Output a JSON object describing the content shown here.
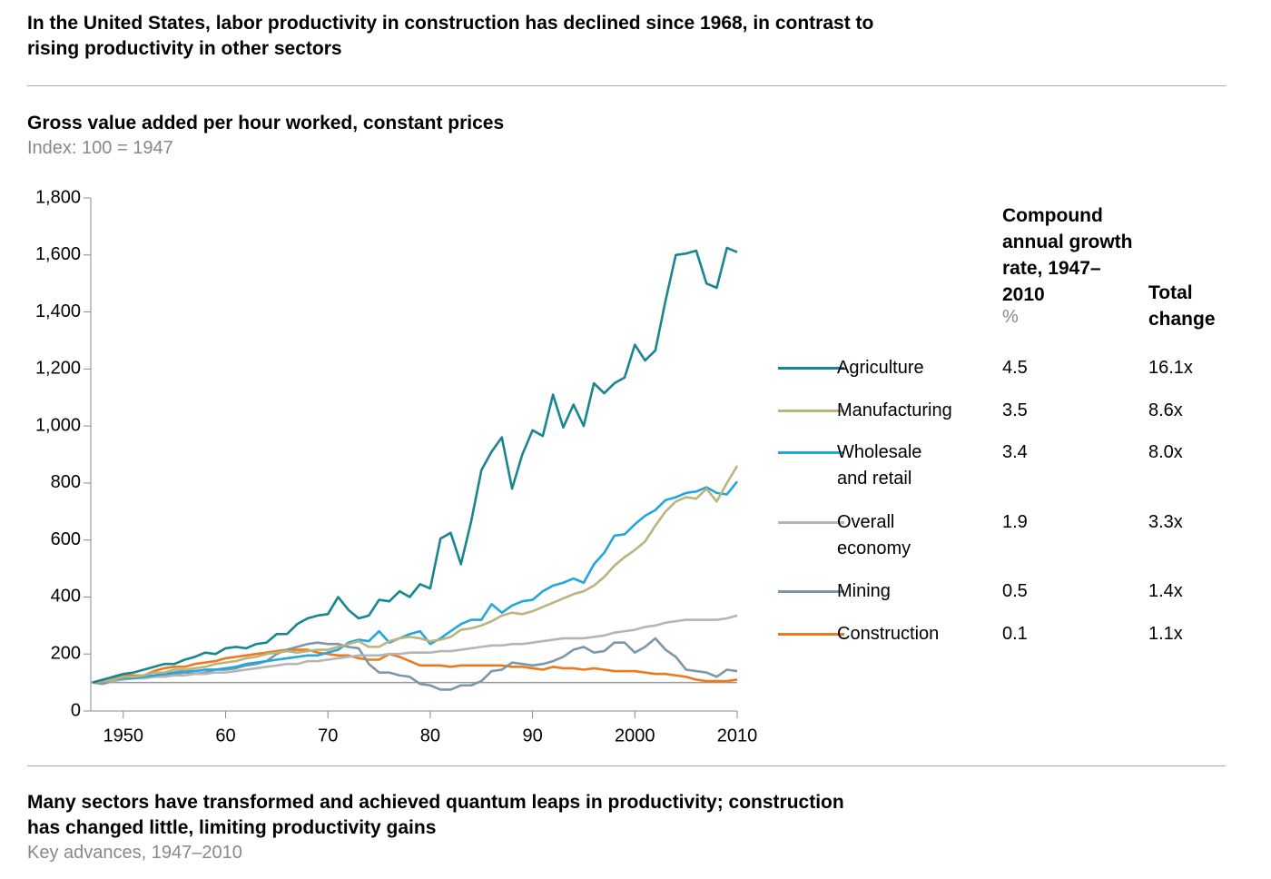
{
  "title": "In the United States, labor productivity in construction has declined since 1968, in contrast to rising productivity in other sectors",
  "chart_data": {
    "type": "line",
    "title": "Gross value added per hour worked, constant prices",
    "subtitle": "Index: 100 = 1947",
    "x": [
      1947,
      1948,
      1949,
      1950,
      1951,
      1952,
      1953,
      1954,
      1955,
      1956,
      1957,
      1958,
      1959,
      1960,
      1961,
      1962,
      1963,
      1964,
      1965,
      1966,
      1967,
      1968,
      1969,
      1970,
      1971,
      1972,
      1973,
      1974,
      1975,
      1976,
      1977,
      1978,
      1979,
      1980,
      1981,
      1982,
      1983,
      1984,
      1985,
      1986,
      1987,
      1988,
      1989,
      1990,
      1991,
      1992,
      1993,
      1994,
      1995,
      1996,
      1997,
      1998,
      1999,
      2000,
      2001,
      2002,
      2003,
      2004,
      2005,
      2006,
      2007,
      2008,
      2009,
      2010
    ],
    "xlim": [
      1947,
      2010
    ],
    "xticks": [
      1950,
      {
        "value": 1960,
        "label": "60"
      },
      {
        "value": 1970,
        "label": "70"
      },
      {
        "value": 1980,
        "label": "80"
      },
      {
        "value": 1990,
        "label": "90"
      },
      2000,
      2010
    ],
    "ylim": [
      0,
      1800
    ],
    "yticks": [
      0,
      200,
      400,
      600,
      800,
      {
        "value": 1000,
        "label": "1,000"
      },
      {
        "value": 1200,
        "label": "1,200"
      },
      {
        "value": 1400,
        "label": "1,400"
      },
      {
        "value": 1600,
        "label": "1,600"
      },
      {
        "value": 1800,
        "label": "1,800"
      }
    ],
    "baseline": 100,
    "series": [
      {
        "name": "Agriculture",
        "color": "#17868f",
        "values": [
          100,
          110,
          120,
          130,
          135,
          145,
          155,
          165,
          165,
          180,
          190,
          205,
          200,
          220,
          225,
          220,
          235,
          240,
          270,
          270,
          305,
          325,
          335,
          340,
          400,
          355,
          325,
          335,
          390,
          385,
          420,
          400,
          445,
          430,
          605,
          625,
          515,
          665,
          845,
          910,
          960,
          780,
          900,
          985,
          965,
          1110,
          995,
          1075,
          1000,
          1150,
          1115,
          1150,
          1170,
          1285,
          1230,
          1265,
          1440,
          1600,
          1605,
          1615,
          1500,
          1485,
          1625,
          1610
        ]
      },
      {
        "name": "Manufacturing",
        "color": "#bcb37e",
        "values": [
          100,
          105,
          110,
          120,
          120,
          125,
          135,
          135,
          145,
          145,
          150,
          155,
          165,
          170,
          175,
          185,
          190,
          200,
          205,
          210,
          205,
          210,
          215,
          215,
          225,
          235,
          245,
          225,
          225,
          245,
          255,
          260,
          255,
          245,
          250,
          260,
          285,
          290,
          300,
          315,
          335,
          345,
          340,
          350,
          365,
          380,
          395,
          410,
          420,
          440,
          470,
          510,
          540,
          565,
          595,
          650,
          700,
          735,
          750,
          745,
          780,
          735,
          800,
          860
        ]
      },
      {
        "name": "Wholesale and retail",
        "color": "#22a6dd",
        "values": [
          100,
          105,
          110,
          115,
          115,
          120,
          125,
          130,
          135,
          140,
          140,
          145,
          145,
          150,
          155,
          165,
          170,
          175,
          180,
          185,
          190,
          195,
          195,
          205,
          215,
          240,
          250,
          245,
          280,
          240,
          255,
          270,
          280,
          235,
          255,
          280,
          305,
          320,
          320,
          375,
          345,
          370,
          385,
          390,
          420,
          440,
          450,
          465,
          450,
          515,
          555,
          615,
          620,
          655,
          685,
          705,
          740,
          750,
          765,
          770,
          785,
          765,
          760,
          805
        ]
      },
      {
        "name": "Overall economy",
        "color": "#b5b5b5",
        "values": [
          100,
          105,
          105,
          110,
          115,
          115,
          120,
          120,
          125,
          125,
          130,
          130,
          135,
          135,
          140,
          145,
          150,
          155,
          160,
          165,
          165,
          175,
          175,
          180,
          185,
          190,
          195,
          195,
          195,
          200,
          200,
          205,
          205,
          205,
          210,
          210,
          215,
          220,
          225,
          230,
          230,
          235,
          235,
          240,
          245,
          250,
          255,
          255,
          255,
          260,
          265,
          275,
          280,
          285,
          295,
          300,
          310,
          315,
          320,
          320,
          320,
          320,
          325,
          335
        ]
      },
      {
        "name": "Mining",
        "color": "#7b97a8",
        "values": [
          100,
          95,
          105,
          115,
          120,
          115,
          120,
          125,
          130,
          135,
          130,
          135,
          145,
          145,
          150,
          160,
          165,
          175,
          200,
          215,
          225,
          235,
          240,
          235,
          235,
          225,
          220,
          165,
          135,
          135,
          125,
          120,
          95,
          90,
          75,
          75,
          90,
          90,
          105,
          140,
          145,
          170,
          165,
          160,
          165,
          175,
          190,
          215,
          225,
          205,
          210,
          240,
          240,
          205,
          225,
          255,
          215,
          190,
          145,
          140,
          135,
          120,
          145,
          140
        ]
      },
      {
        "name": "Construction",
        "color": "#ec7a1c",
        "values": [
          100,
          110,
          115,
          125,
          125,
          125,
          140,
          150,
          155,
          155,
          165,
          170,
          175,
          185,
          190,
          195,
          200,
          205,
          210,
          215,
          215,
          215,
          205,
          200,
          195,
          195,
          185,
          180,
          180,
          200,
          190,
          175,
          160,
          160,
          160,
          155,
          160,
          160,
          160,
          160,
          160,
          155,
          155,
          150,
          145,
          155,
          150,
          150,
          145,
          150,
          145,
          140,
          140,
          140,
          135,
          130,
          130,
          125,
          120,
          110,
          105,
          105,
          105,
          110
        ]
      }
    ],
    "table": {
      "rate_header": "Compound annual growth rate, 1947–2010",
      "rate_unit": "%",
      "total_header": "Total change",
      "rates": [
        4.5,
        3.5,
        3.4,
        1.9,
        0.5,
        0.1
      ],
      "totals": [
        "16.1x",
        "8.6x",
        "8.0x",
        "3.3x",
        "1.4x",
        "1.1x"
      ]
    }
  },
  "footer": {
    "title": "Many sectors have transformed and achieved quantum leaps in productivity; construction has changed little, limiting productivity gains",
    "subtitle": "Key advances, 1947–2010"
  }
}
